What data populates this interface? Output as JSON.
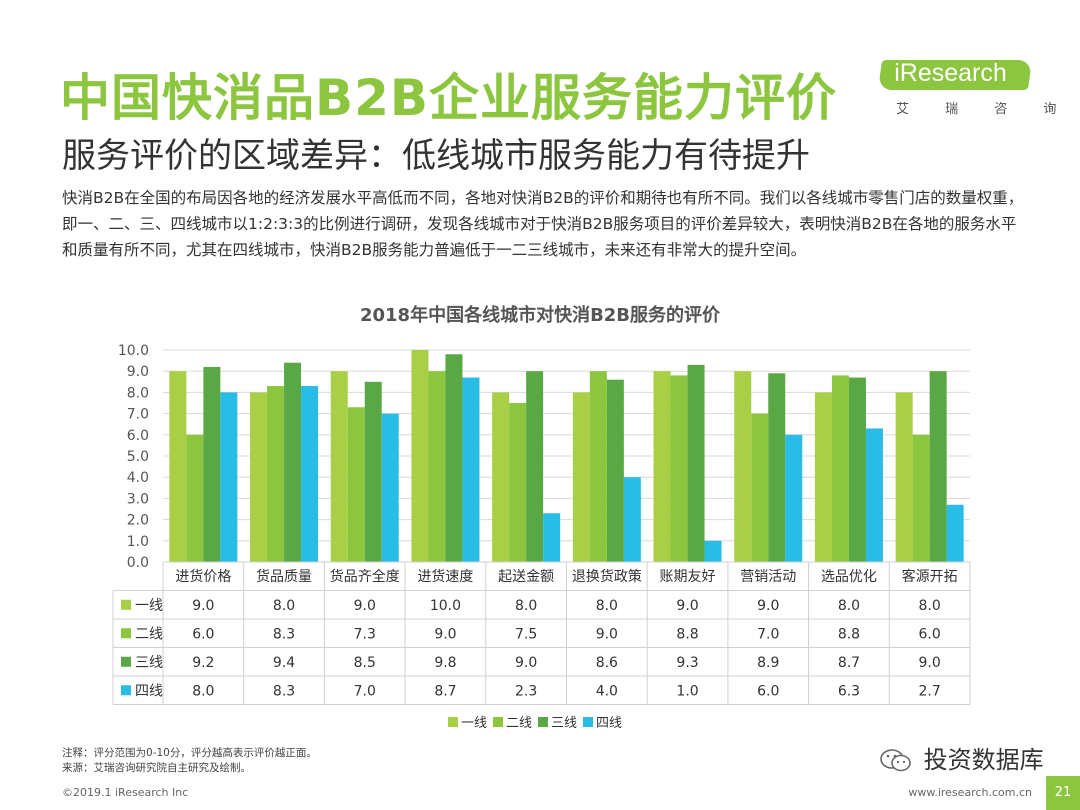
{
  "title": "中国快消品B2B企业服务能力评价",
  "subtitle": "服务评价的区域差异：低线城市服务能力有待提升",
  "logo": {
    "name": "iResearch",
    "sub": "艾 瑞 咨 询"
  },
  "intro_text": "快消B2B在全国的布局因各地的经济发展水平高低而不同，各地对快消B2B的评价和期待也有所不同。我们以各线城市零售门店的数量权重，即一、二、三、四线城市以1:2:3:3的比例进行调研，发现各线城市对于快消B2B服务项目的评价差异较大，表明快消B2B在各地的服务水平和质量有所不同，尤其在四线城市，快消B2B服务能力普遍低于一二三线城市，未来还有非常大的提升空间。",
  "chart_data": {
    "type": "bar",
    "title": "2018年中国各线城市对快消B2B服务的评价",
    "categories": [
      "进货价格",
      "货品质量",
      "货品齐全度",
      "进货速度",
      "起送金额",
      "退换货政策",
      "账期友好",
      "营销活动",
      "选品优化",
      "客源开拓"
    ],
    "series": [
      {
        "name": "一线",
        "color": "#a8cf45",
        "values": [
          9.0,
          8.0,
          9.0,
          10.0,
          8.0,
          8.0,
          9.0,
          9.0,
          8.0,
          8.0
        ]
      },
      {
        "name": "二线",
        "color": "#8cc63f",
        "values": [
          6.0,
          8.3,
          7.3,
          9.0,
          7.5,
          9.0,
          8.8,
          7.0,
          8.8,
          6.0
        ]
      },
      {
        "name": "三线",
        "color": "#5aa845",
        "values": [
          9.2,
          9.4,
          8.5,
          9.8,
          9.0,
          8.6,
          9.3,
          8.9,
          8.7,
          9.0
        ]
      },
      {
        "name": "四线",
        "color": "#29bce6",
        "values": [
          8.0,
          8.3,
          7.0,
          8.7,
          2.3,
          4.0,
          1.0,
          6.0,
          6.3,
          2.7
        ]
      }
    ],
    "ylim": [
      0,
      10
    ],
    "yticks": [
      "0.0",
      "1.0",
      "2.0",
      "3.0",
      "4.0",
      "5.0",
      "6.0",
      "7.0",
      "8.0",
      "9.0",
      "10.0"
    ],
    "grid": true,
    "legend_position": "bottom",
    "data_table": true
  },
  "footnotes": [
    "注释：评分范围为0-10分，评分越高表示评价越正面。",
    "来源：艾瑞咨询研究院自主研究及绘制。"
  ],
  "copyright": "©2019.1 iResearch Inc",
  "url": "www.iresearch.com.cn",
  "page_number": "21",
  "wechat_label": "投资数据库"
}
